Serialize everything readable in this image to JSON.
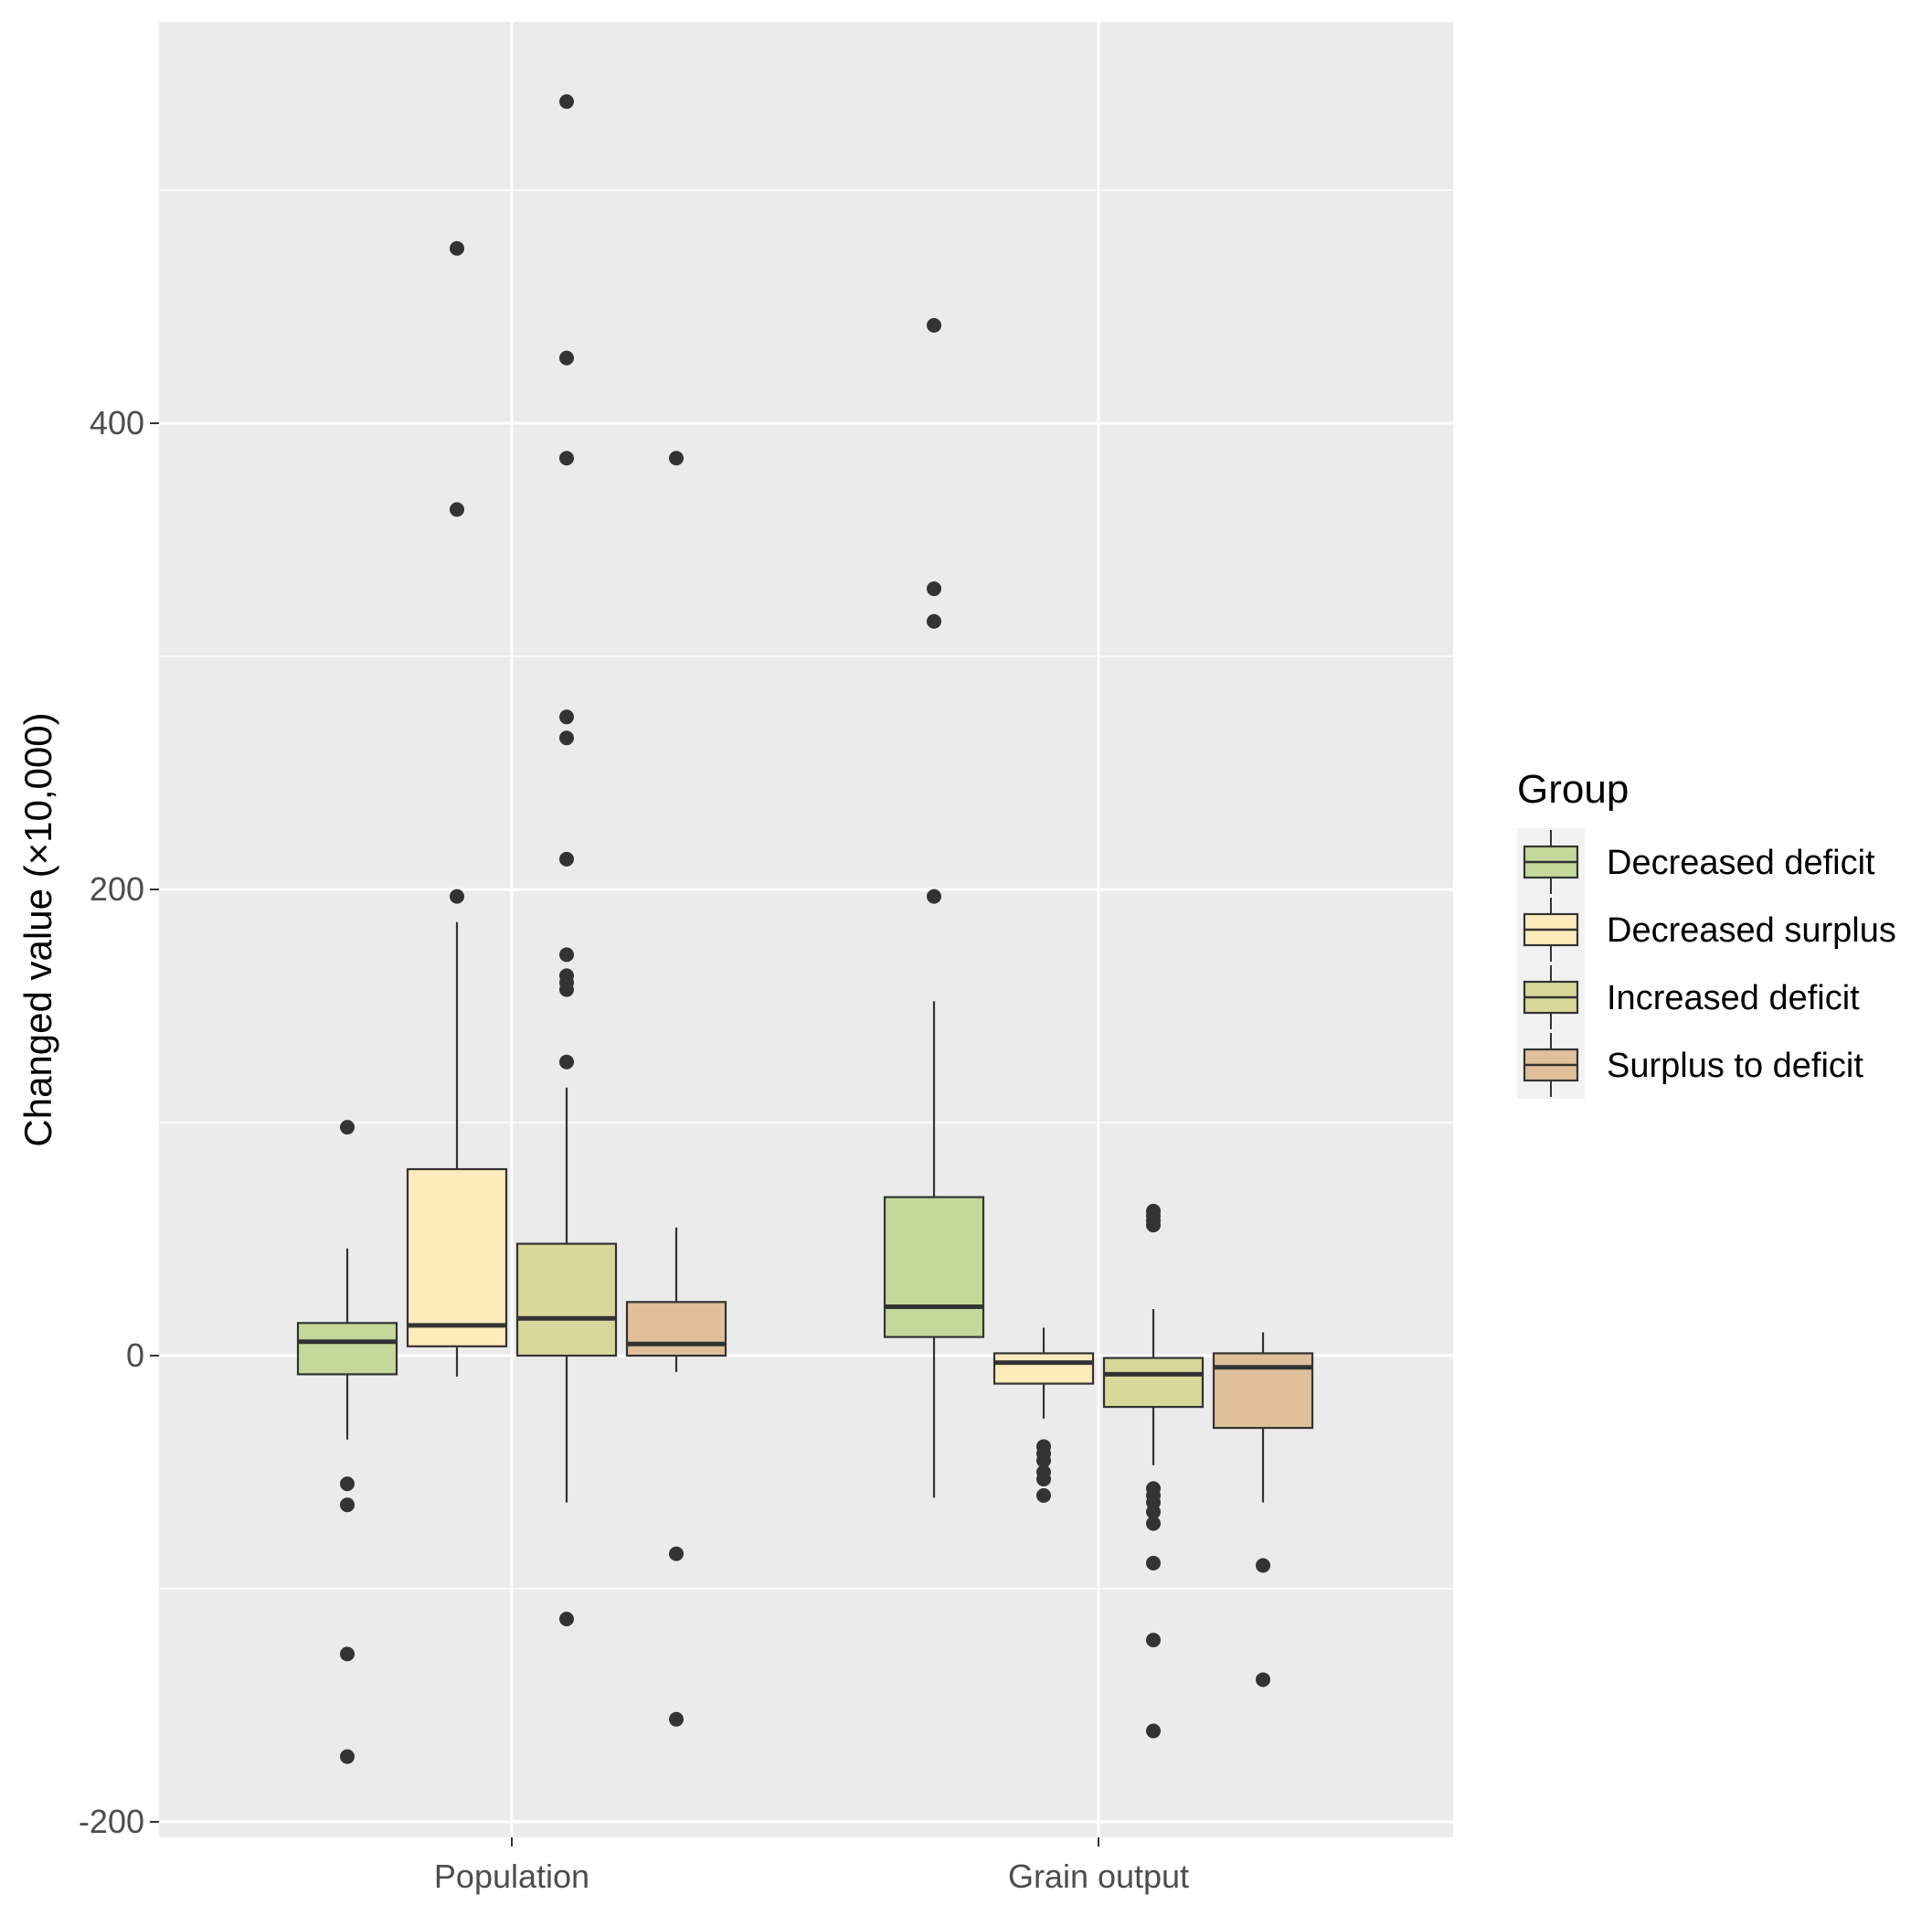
{
  "chart_data": {
    "type": "boxplot",
    "title": "",
    "xlabel": "",
    "ylabel": "Changed value (×10,000)",
    "ylim": [
      -205,
      580
    ],
    "yticks": [
      -200,
      0,
      200,
      400
    ],
    "grid": true,
    "categories": [
      "Population",
      "Grain output"
    ],
    "legend": {
      "title": "Group",
      "position": "right",
      "entries": [
        "Decreased deficit",
        "Decreased surplus",
        "Increased deficit",
        "Surplus to deficit"
      ]
    },
    "series": [
      {
        "name": "Decreased deficit",
        "color": "#c4d89b",
        "boxes": [
          {
            "category": "Population",
            "q1": -8,
            "median": 6,
            "q3": 14,
            "whisker_low": -36,
            "whisker_high": 46,
            "outliers": [
              98,
              -55,
              -64,
              -128,
              -172
            ]
          },
          {
            "category": "Grain output",
            "q1": 8,
            "median": 21,
            "q3": 68,
            "whisker_low": -61,
            "whisker_high": 152,
            "outliers": [
              442,
              329,
              315,
              197
            ]
          }
        ]
      },
      {
        "name": "Decreased surplus",
        "color": "#fdebbb",
        "boxes": [
          {
            "category": "Population",
            "q1": 4,
            "median": 13,
            "q3": 80,
            "whisker_low": -9,
            "whisker_high": 186,
            "outliers": [
              475,
              363,
              197
            ]
          },
          {
            "category": "Grain output",
            "q1": -12,
            "median": -3,
            "q3": 1,
            "whisker_low": -27,
            "whisker_high": 12,
            "outliers": [
              -39,
              -42,
              -45,
              -50,
              -53,
              -60
            ]
          }
        ]
      },
      {
        "name": "Increased deficit",
        "color": "#d7d89a",
        "boxes": [
          {
            "category": "Population",
            "q1": 0,
            "median": 16,
            "q3": 48,
            "whisker_low": -63,
            "whisker_high": 115,
            "outliers": [
              538,
              428,
              385,
              274,
              265,
              213,
              172,
              163,
              160,
              157,
              126,
              -113
            ]
          },
          {
            "category": "Grain output",
            "q1": -22,
            "median": -8,
            "q3": -1,
            "whisker_low": -47,
            "whisker_high": 20,
            "outliers": [
              62,
              60,
              58,
              56,
              -57,
              -60,
              -63,
              -67,
              -72,
              -89,
              -122,
              -161
            ]
          }
        ]
      },
      {
        "name": "Surplus to deficit",
        "color": "#e0c09a",
        "boxes": [
          {
            "category": "Population",
            "q1": 0,
            "median": 5,
            "q3": 23,
            "whisker_low": -7,
            "whisker_high": 55,
            "outliers": [
              385,
              -85,
              -156
            ]
          },
          {
            "category": "Grain output",
            "q1": -31,
            "median": -5,
            "q3": 1,
            "whisker_low": -63,
            "whisker_high": 10,
            "outliers": [
              -90,
              -139
            ]
          }
        ]
      }
    ]
  }
}
